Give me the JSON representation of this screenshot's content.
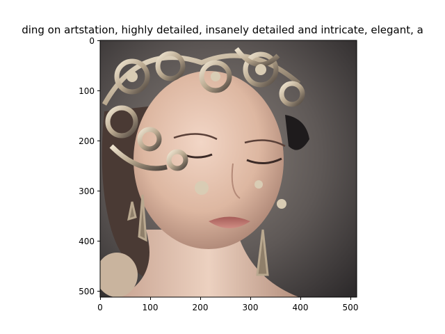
{
  "figure": {
    "title": "ding on artstation, highly detailed, insanely detailed and intricate, elegant, a",
    "image_description": "AI-generated portrait of a young woman with eyes closed, wearing an ornate silver and gold filigree headpiece with swirling metal scrolls, dangling filigree earrings, soft brown-grey background",
    "x_axis": {
      "ticks": [
        "0",
        "100",
        "200",
        "300",
        "400",
        "500"
      ]
    },
    "y_axis": {
      "ticks": [
        "0",
        "100",
        "200",
        "300",
        "400",
        "500"
      ]
    },
    "colors": {
      "background": "#ffffff",
      "axis": "#000000",
      "image_bg_dark": "#2e2b2c",
      "image_bg_mid": "#6d6662",
      "skin": "#e6c4b0",
      "metal_light": "#d9ccb4",
      "metal_dark": "#5a5048",
      "lips": "#b56f6a"
    }
  }
}
